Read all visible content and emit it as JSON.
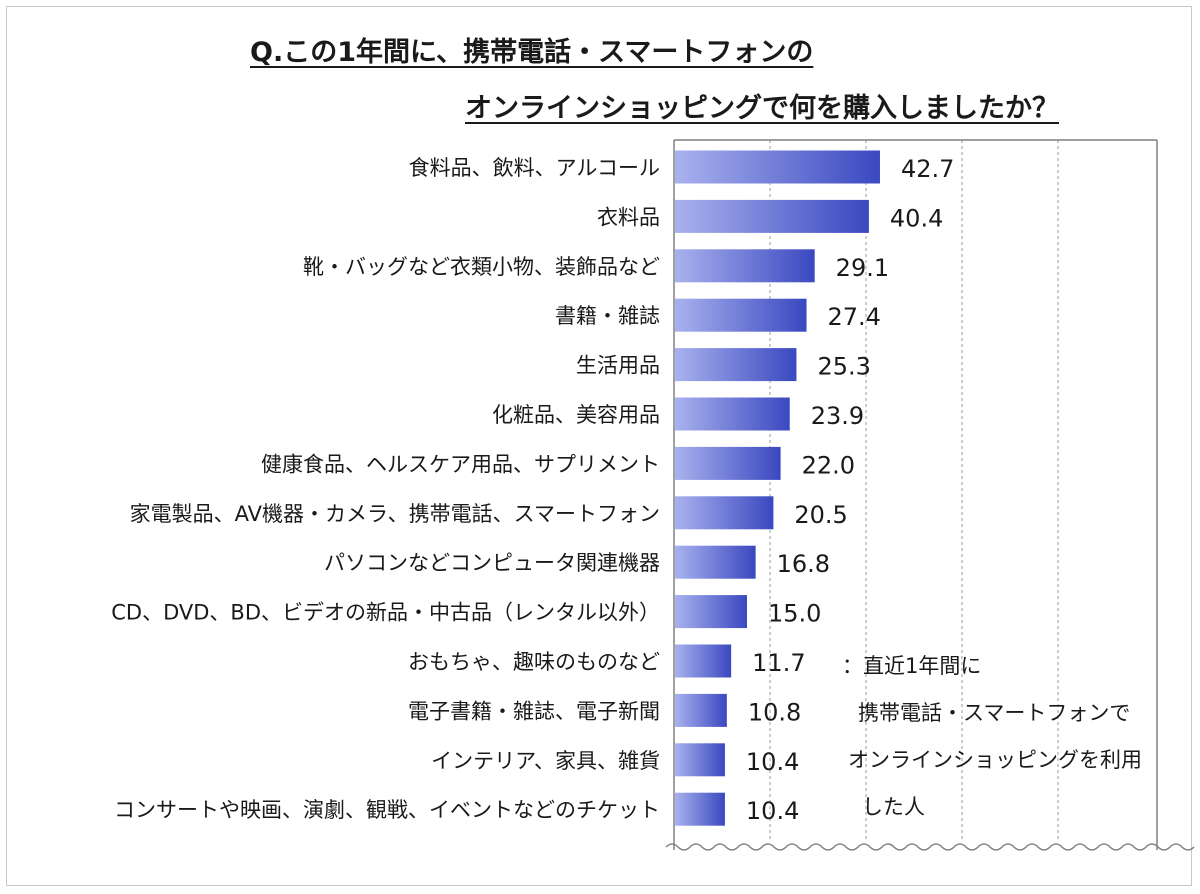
{
  "title": {
    "line1": "Q.この1年間に、携帯電話・スマートフォンの",
    "line2": "オンラインショッピングで何を購入しましたか？"
  },
  "note": {
    "line1": "：直近1年間に",
    "line2": "携帯電話・スマートフォンで",
    "line3": "オンラインショッピングを利用",
    "line4": "した人"
  },
  "colors": {
    "bar_light": "#a9b2ee",
    "bar_dark": "#3a48c0",
    "grid": "#9a9a9a"
  },
  "chart_data": {
    "type": "bar",
    "orientation": "horizontal",
    "xlim": [
      0,
      100
    ],
    "grid": "vertical-dashed",
    "categories": [
      "食料品、飲料、アルコール",
      "衣料品",
      "靴・バッグなど衣類小物、装飾品など",
      "書籍・雑誌",
      "生活用品",
      "化粧品、美容用品",
      "健康食品、ヘルスケア用品、サプリメント",
      "家電製品、AV機器・カメラ、携帯電話、スマートフォン",
      "パソコンなどコンピュータ関連機器",
      "CD、DVD、BD、ビデオの新品・中古品（レンタル以外）",
      "おもちゃ、趣味のものなど",
      "電子書籍・雑誌、電子新聞",
      "インテリア、家具、雑貨",
      "コンサートや映画、演劇、観戦、イベントなどのチケット"
    ],
    "values": [
      42.7,
      40.4,
      29.1,
      27.4,
      25.3,
      23.9,
      22.0,
      20.5,
      16.8,
      15.0,
      11.7,
      10.8,
      10.4,
      10.4
    ],
    "value_labels": [
      "42.7",
      "40.4",
      "29.1",
      "27.4",
      "25.3",
      "23.9",
      "22.0",
      "20.5",
      "16.8",
      "15.0",
      "11.7",
      "10.8",
      "10.4",
      "10.4"
    ]
  }
}
